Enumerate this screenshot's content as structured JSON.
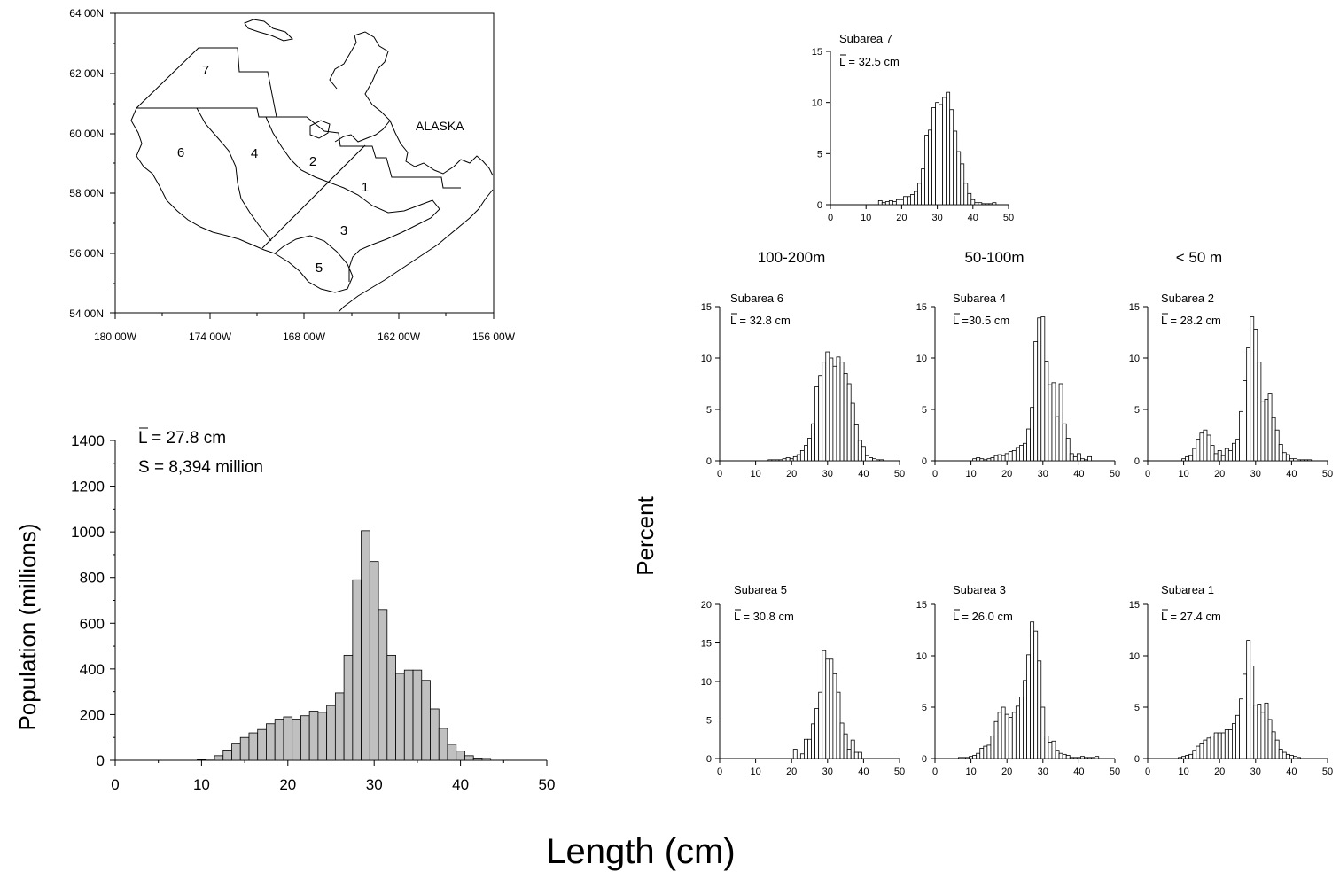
{
  "map": {
    "lat_ticks": [
      "64 00N",
      "62 00N",
      "60 00N",
      "58 00N",
      "56 00N",
      "54 00N"
    ],
    "lon_ticks": [
      "180 00W",
      "174 00W",
      "168 00W",
      "162 00W",
      "156 00W"
    ],
    "region_label": "ALASKA",
    "subarea_numbers": [
      "1",
      "2",
      "3",
      "4",
      "5",
      "6",
      "7"
    ]
  },
  "depth_headers": [
    "100-200m",
    "50-100m",
    "< 50 m"
  ],
  "percent_axis_label": "Percent",
  "length_axis_label": "Length (cm)",
  "chart_data": [
    {
      "id": "total",
      "type": "bar",
      "annotations": [
        "L = 27.8 cm",
        "S = 8,394 million"
      ],
      "ylabel": "Population (millions)",
      "xlabel": "Length (cm)",
      "xlim": [
        0,
        50
      ],
      "ylim": [
        0,
        1400
      ],
      "x_ticks": [
        0,
        10,
        20,
        30,
        40,
        50
      ],
      "y_ticks": [
        0,
        200,
        400,
        600,
        800,
        1000,
        1200,
        1400
      ],
      "bar_color": "#c0c0c0",
      "x": [
        10,
        11,
        12,
        13,
        14,
        15,
        16,
        17,
        18,
        19,
        20,
        21,
        22,
        23,
        24,
        25,
        26,
        27,
        28,
        29,
        30,
        31,
        32,
        33,
        34,
        35,
        36,
        37,
        38,
        39,
        40,
        41,
        42,
        43
      ],
      "values": [
        3,
        5,
        20,
        45,
        75,
        100,
        120,
        135,
        160,
        180,
        190,
        180,
        195,
        215,
        210,
        240,
        295,
        460,
        790,
        1005,
        870,
        660,
        460,
        380,
        395,
        395,
        350,
        225,
        140,
        70,
        40,
        20,
        10,
        8
      ]
    },
    {
      "id": "subarea7",
      "type": "bar",
      "title": "Subarea 7",
      "annotation": "L = 32.5 cm",
      "xlim": [
        0,
        50
      ],
      "ylim": [
        0,
        15
      ],
      "x_ticks": [
        0,
        10,
        20,
        30,
        40,
        50
      ],
      "y_ticks": [
        0,
        5,
        10,
        15
      ],
      "x": [
        14,
        15,
        16,
        17,
        18,
        19,
        20,
        21,
        22,
        23,
        24,
        25,
        26,
        27,
        28,
        29,
        30,
        31,
        32,
        33,
        34,
        35,
        36,
        37,
        38,
        39,
        40,
        41,
        42,
        43,
        44,
        45,
        46
      ],
      "values": [
        0.4,
        0.2,
        0.3,
        0.4,
        0.3,
        0.5,
        0.5,
        0.8,
        0.8,
        1.0,
        1.3,
        2.1,
        3.5,
        6.8,
        7.3,
        9.5,
        10.0,
        9.8,
        10.5,
        11.0,
        9.3,
        7.2,
        5.2,
        4.0,
        2.1,
        1.1,
        0.5,
        0.2,
        0.2,
        0.1,
        0.1,
        0.1,
        0.2
      ]
    },
    {
      "id": "subarea6",
      "type": "bar",
      "title": "Subarea 6",
      "annotation": "L = 32.8 cm",
      "xlim": [
        0,
        50
      ],
      "ylim": [
        0,
        15
      ],
      "x_ticks": [
        0,
        10,
        20,
        30,
        40,
        50
      ],
      "y_ticks": [
        0,
        5,
        10,
        15
      ],
      "x": [
        14,
        15,
        16,
        17,
        18,
        19,
        20,
        21,
        22,
        23,
        24,
        25,
        26,
        27,
        28,
        29,
        30,
        31,
        32,
        33,
        34,
        35,
        36,
        37,
        38,
        39,
        40,
        41,
        42,
        43,
        44,
        45
      ],
      "values": [
        0.1,
        0.1,
        0.1,
        0.1,
        0.2,
        0.3,
        0.2,
        0.4,
        0.6,
        1.0,
        1.5,
        2.2,
        3.6,
        7.2,
        8.3,
        9.6,
        10.6,
        10.0,
        9.2,
        10.1,
        9.6,
        8.5,
        7.5,
        5.6,
        3.5,
        2.0,
        1.4,
        0.5,
        0.3,
        0.2,
        0.1,
        0.1
      ]
    },
    {
      "id": "subarea4",
      "type": "bar",
      "title": "Subarea 4",
      "annotation": "L =30.5  cm",
      "xlim": [
        0,
        50
      ],
      "ylim": [
        0,
        15
      ],
      "x_ticks": [
        0,
        10,
        20,
        30,
        40,
        50
      ],
      "y_ticks": [
        0,
        5,
        10,
        15
      ],
      "x": [
        11,
        12,
        13,
        14,
        15,
        16,
        17,
        18,
        19,
        20,
        21,
        22,
        23,
        24,
        25,
        26,
        27,
        28,
        29,
        30,
        31,
        32,
        33,
        34,
        35,
        36,
        37,
        38,
        39,
        40,
        41,
        42,
        43
      ],
      "values": [
        0.2,
        0.3,
        0.2,
        0.1,
        0.2,
        0.3,
        0.5,
        0.6,
        0.5,
        0.7,
        0.9,
        1.0,
        1.3,
        1.5,
        1.7,
        3.1,
        5.2,
        11.6,
        13.9,
        14.0,
        9.7,
        7.4,
        7.6,
        4.3,
        7.5,
        3.6,
        2.2,
        0.7,
        0.4,
        0.7,
        0.2,
        0.1,
        0.4
      ]
    },
    {
      "id": "subarea2",
      "type": "bar",
      "title": "Subarea 2",
      "annotation": "L = 28.2 cm",
      "xlim": [
        0,
        50
      ],
      "ylim": [
        0,
        15
      ],
      "x_ticks": [
        0,
        10,
        20,
        30,
        40,
        50
      ],
      "y_ticks": [
        0,
        5,
        10,
        15
      ],
      "x": [
        10,
        11,
        12,
        13,
        14,
        15,
        16,
        17,
        18,
        19,
        20,
        21,
        22,
        23,
        24,
        25,
        26,
        27,
        28,
        29,
        30,
        31,
        32,
        33,
        34,
        35,
        36,
        37,
        38,
        39,
        40,
        41,
        42,
        43,
        44,
        45
      ],
      "values": [
        0.2,
        0.4,
        0.5,
        1.2,
        2.1,
        2.7,
        3.0,
        2.5,
        1.5,
        0.7,
        1.0,
        0.5,
        1.2,
        1.0,
        1.7,
        2.1,
        4.8,
        7.8,
        11.0,
        14.0,
        12.8,
        9.6,
        5.8,
        6.0,
        6.5,
        4.2,
        3.0,
        1.6,
        0.8,
        0.6,
        0.2,
        0.2,
        0.1,
        0.1,
        0.1,
        0.1
      ]
    },
    {
      "id": "subarea5",
      "type": "bar",
      "title": "Subarea 5",
      "annotation": "L = 30.8 cm",
      "xlim": [
        0,
        50
      ],
      "ylim": [
        0,
        20
      ],
      "x_ticks": [
        0,
        10,
        20,
        30,
        40,
        50
      ],
      "y_ticks": [
        0,
        5,
        10,
        15,
        20
      ],
      "x": [
        20,
        21,
        22,
        23,
        24,
        25,
        26,
        27,
        28,
        29,
        30,
        31,
        32,
        33,
        34,
        35,
        36,
        37,
        38,
        39
      ],
      "values": [
        0,
        1.2,
        0,
        0.6,
        2.5,
        2.5,
        4.5,
        6.5,
        8.6,
        14.0,
        12.9,
        12.9,
        11.0,
        8.6,
        4.6,
        3.2,
        1.2,
        2.4,
        0.8,
        0.8
      ]
    },
    {
      "id": "subarea3",
      "type": "bar",
      "title": "Subarea 3",
      "annotation": "L = 26.0 cm",
      "xlim": [
        0,
        50
      ],
      "ylim": [
        0,
        15
      ],
      "x_ticks": [
        0,
        10,
        20,
        30,
        40,
        50
      ],
      "y_ticks": [
        0,
        5,
        10,
        15
      ],
      "x": [
        7,
        8,
        9,
        10,
        11,
        12,
        13,
        14,
        15,
        16,
        17,
        18,
        19,
        20,
        21,
        22,
        23,
        24,
        25,
        26,
        27,
        28,
        29,
        30,
        31,
        32,
        33,
        34,
        35,
        36,
        37,
        38,
        39,
        40,
        41,
        42,
        43,
        44,
        45
      ],
      "values": [
        0.1,
        0.1,
        0.1,
        0.2,
        0.3,
        0.5,
        1.0,
        1.2,
        1.3,
        2.2,
        3.6,
        4.5,
        5.0,
        4.3,
        4.0,
        4.5,
        5.1,
        6.0,
        7.6,
        10.1,
        13.3,
        12.4,
        9.5,
        5.0,
        2.2,
        1.6,
        1.7,
        0.8,
        0.5,
        0.4,
        0.3,
        0.1,
        0.1,
        0.1,
        0.2,
        0.1,
        0.1,
        0.1,
        0.2
      ]
    },
    {
      "id": "subarea1",
      "type": "bar",
      "title": "Subarea 1",
      "annotation": "L = 27.4 cm",
      "xlim": [
        0,
        50
      ],
      "ylim": [
        0,
        15
      ],
      "x_ticks": [
        0,
        10,
        20,
        30,
        40,
        50
      ],
      "y_ticks": [
        0,
        5,
        10,
        15
      ],
      "x": [
        9,
        10,
        11,
        12,
        13,
        14,
        15,
        16,
        17,
        18,
        19,
        20,
        21,
        22,
        23,
        24,
        25,
        26,
        27,
        28,
        29,
        30,
        31,
        32,
        33,
        34,
        35,
        36,
        37,
        38,
        39,
        40,
        41,
        42
      ],
      "values": [
        0.1,
        0.2,
        0.3,
        0.4,
        0.8,
        1.2,
        1.5,
        1.8,
        2.0,
        2.2,
        2.5,
        2.5,
        2.5,
        2.8,
        2.8,
        3.4,
        4.2,
        5.8,
        8.2,
        11.5,
        9.0,
        5.2,
        5.3,
        4.5,
        5.4,
        3.8,
        2.6,
        1.8,
        0.9,
        0.6,
        0.4,
        0.3,
        0.2,
        0.1
      ]
    }
  ]
}
